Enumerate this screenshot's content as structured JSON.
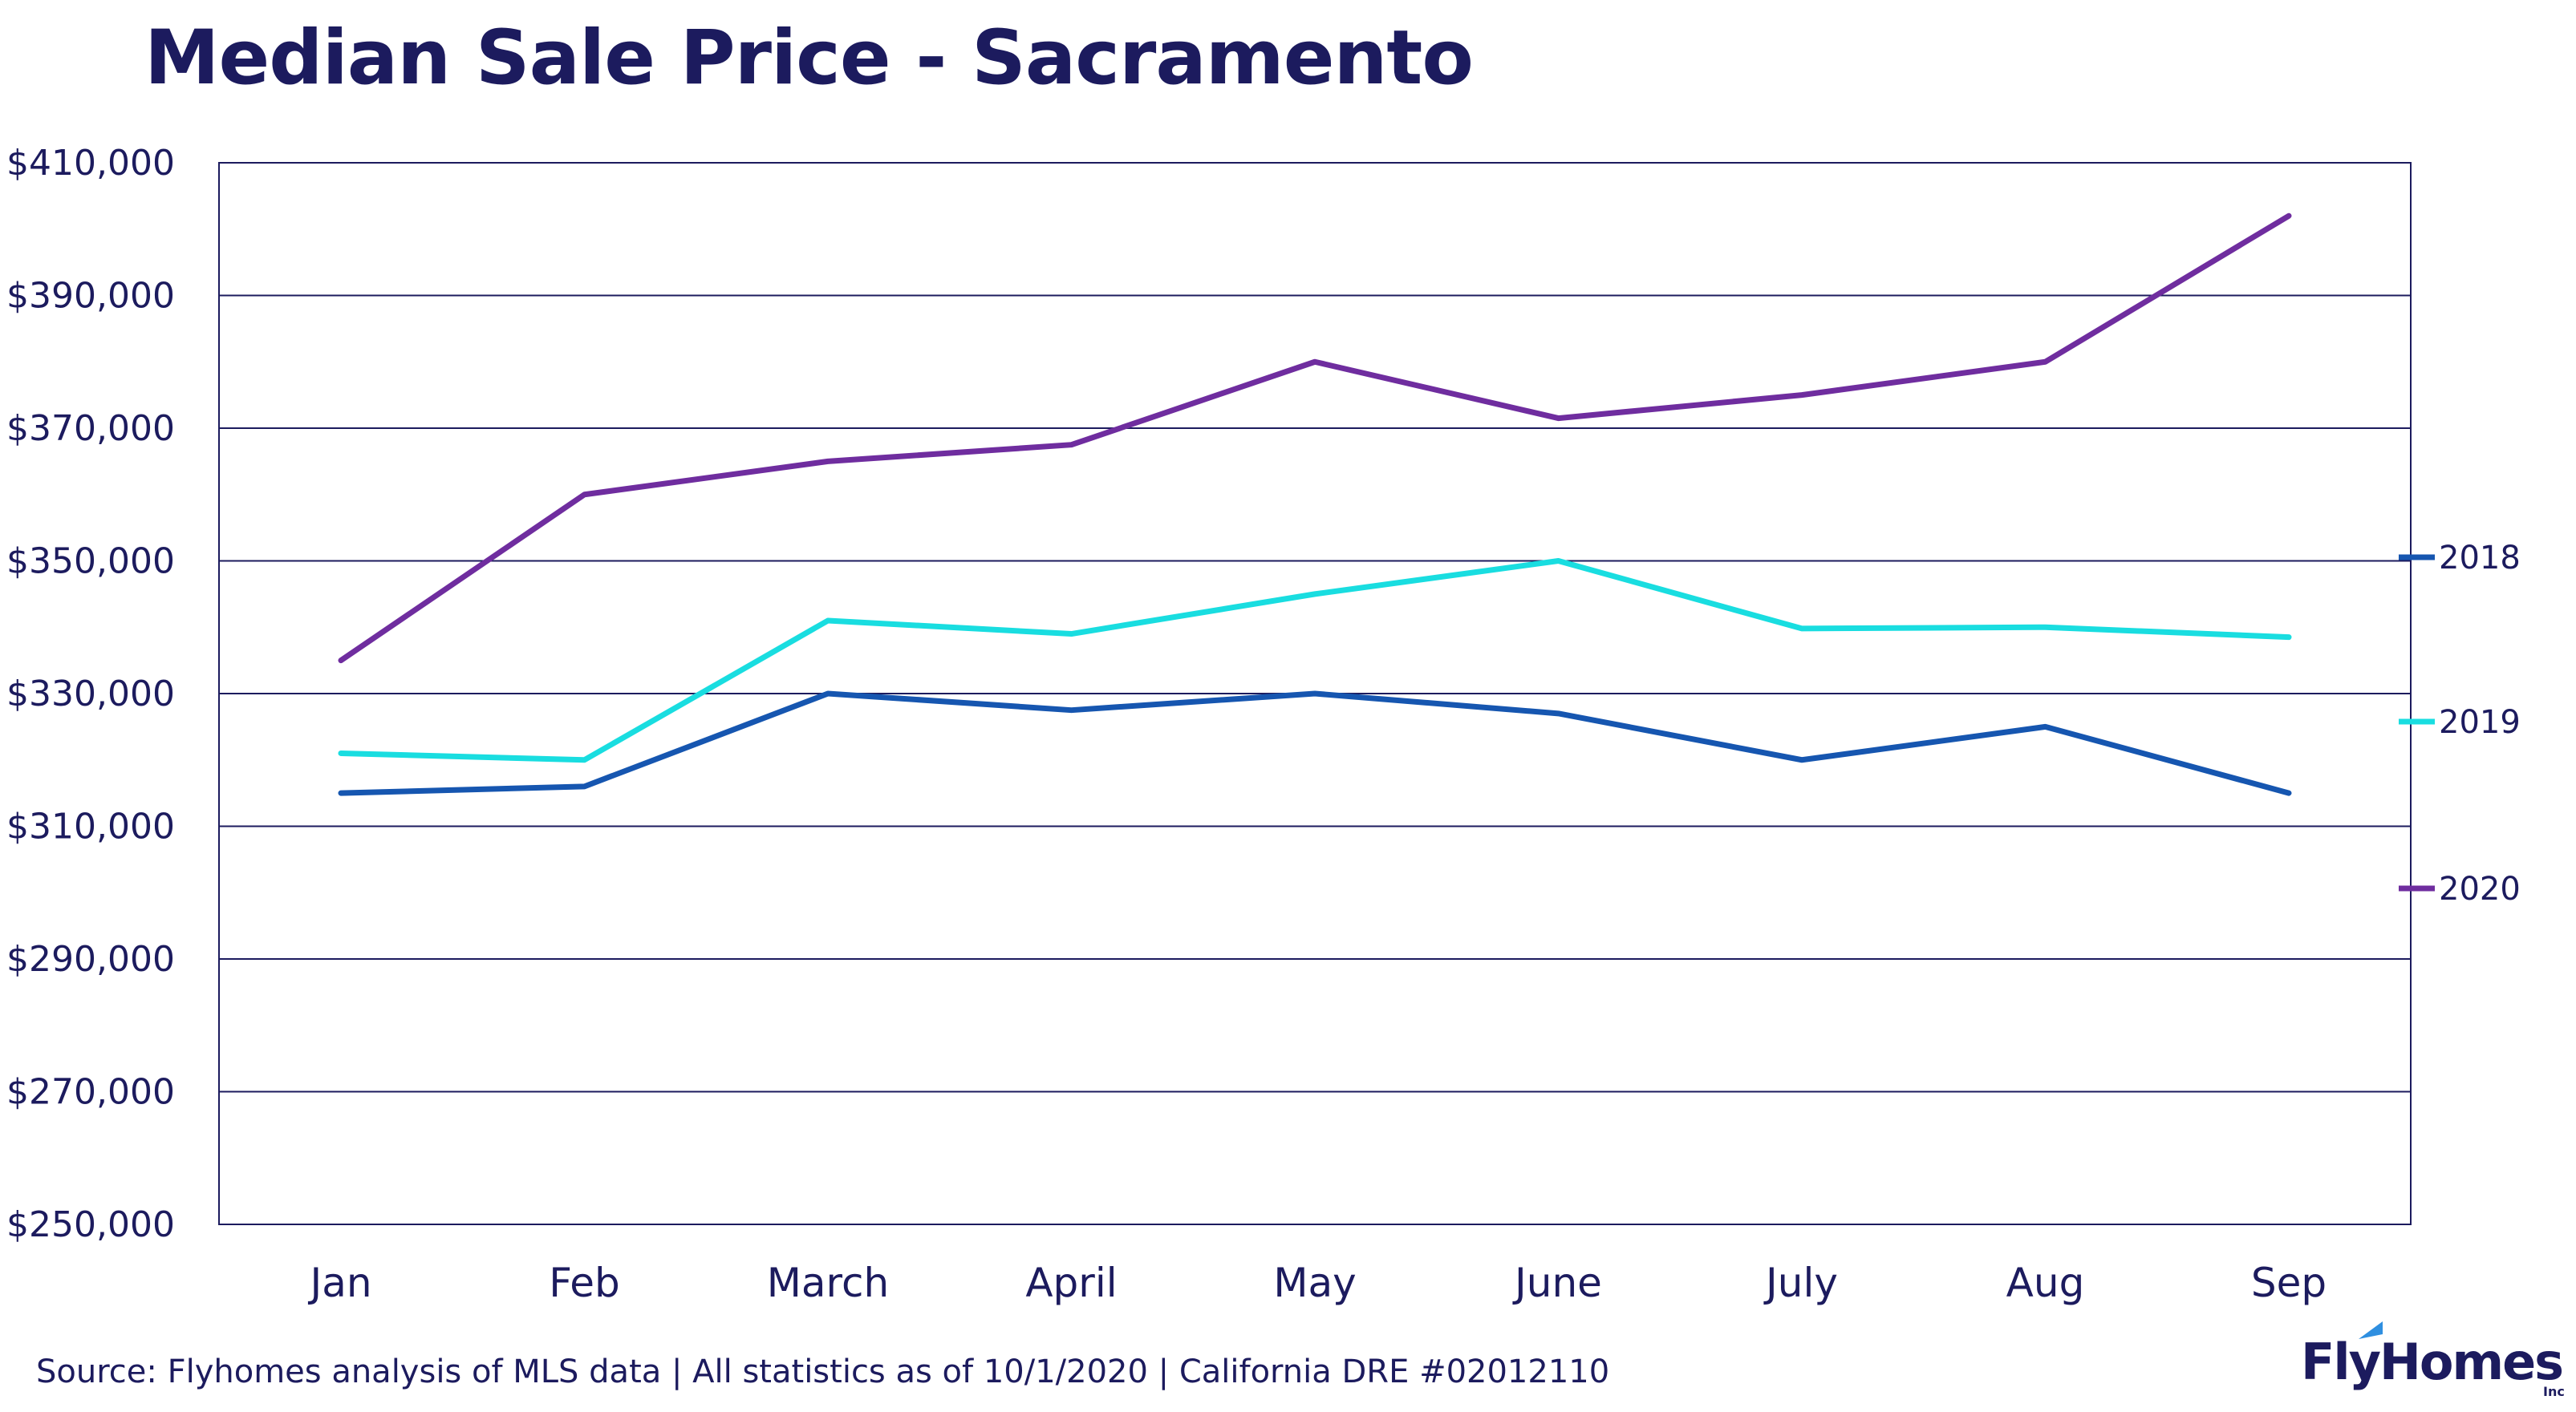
{
  "chart_data": {
    "type": "line",
    "title": "Median Sale Price - Sacramento",
    "categories": [
      "Jan",
      "Feb",
      "March",
      "April",
      "May",
      "June",
      "July",
      "Aug",
      "Sep"
    ],
    "yticks": [
      "$250,000",
      "$270,000",
      "$290,000",
      "$310,000",
      "$330,000",
      "$350,000",
      "$370,000",
      "$390,000",
      "$410,000"
    ],
    "ylim": [
      250000,
      410000
    ],
    "grid": true,
    "legend_position": "right",
    "series": [
      {
        "name": "2018",
        "color": "#1656b0",
        "values": [
          315000,
          316000,
          330000,
          327500,
          330000,
          327000,
          320000,
          325000,
          315000
        ]
      },
      {
        "name": "2019",
        "color": "#19dde0",
        "values": [
          321000,
          320000,
          341000,
          339000,
          345000,
          350000,
          339800,
          340000,
          338500
        ]
      },
      {
        "name": "2020",
        "color": "#6f2d9f",
        "values": [
          335000,
          360000,
          365000,
          367500,
          380000,
          371500,
          375000,
          380000,
          402000
        ]
      }
    ]
  },
  "footer": {
    "source": "Source: Flyhomes analysis of MLS data | All statistics as of 10/1/2020 | California DRE #02012110"
  },
  "logo": {
    "name": "FlyHomes",
    "suffix": "Inc",
    "accent_color": "#2f8fe0"
  }
}
